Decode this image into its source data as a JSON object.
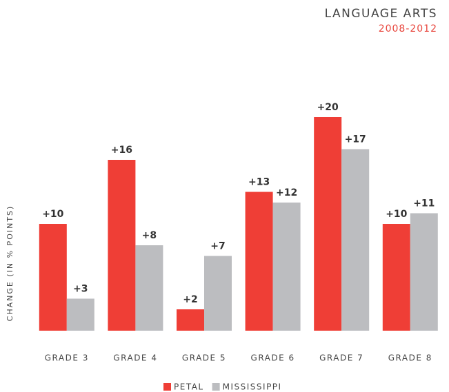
{
  "chart_data": {
    "type": "bar",
    "title": "LANGUAGE ARTS",
    "subtitle": "2008-2012",
    "y_label": "CHANGE (IN % POINTS)",
    "categories": [
      "GRADE 3",
      "GRADE 4",
      "GRADE 5",
      "GRADE 6",
      "GRADE 7",
      "GRADE 8"
    ],
    "series": [
      {
        "name": "PETAL",
        "color": "#ef3e36",
        "values": [
          10,
          16,
          2,
          13,
          20,
          10
        ],
        "value_labels": [
          "+10",
          "+16",
          "+2",
          "+13",
          "+20",
          "+10"
        ]
      },
      {
        "name": "MISSISSIPPI",
        "color": "#bcbdc0",
        "values": [
          3,
          8,
          7,
          12,
          17,
          11
        ],
        "value_labels": [
          "+3",
          "+8",
          "+7",
          "+12",
          "+17",
          "+11"
        ]
      }
    ],
    "ylim": [
      0,
      20
    ]
  }
}
